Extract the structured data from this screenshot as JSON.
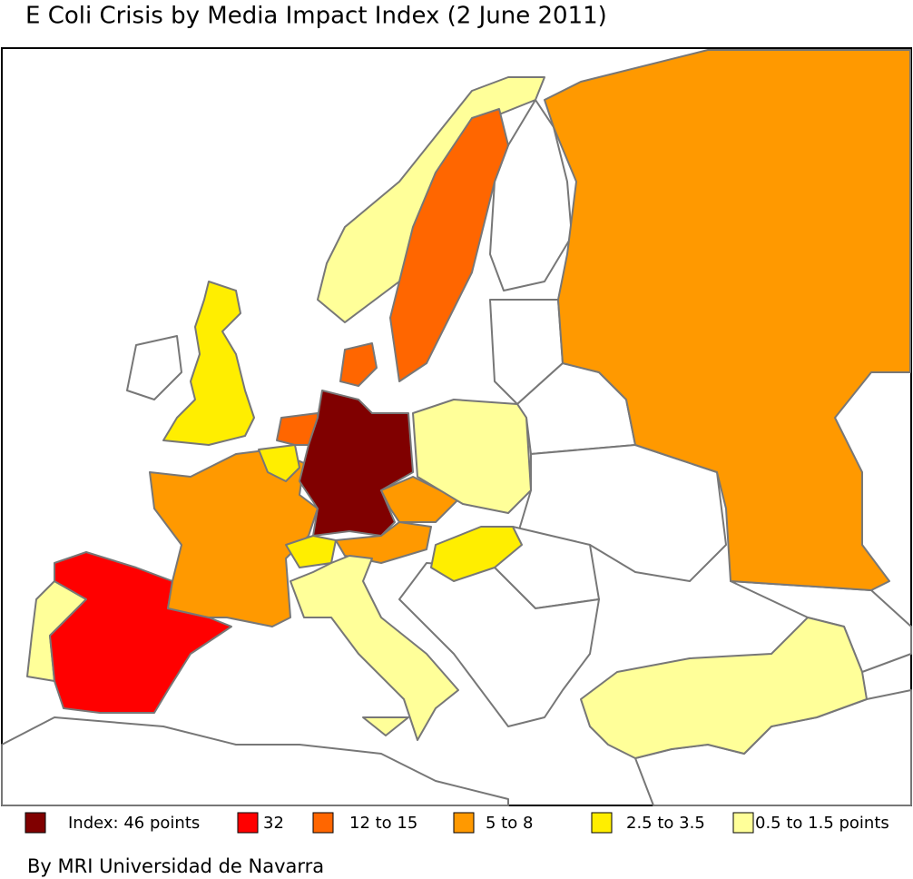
{
  "title": "E Coli Crisis by Media Impact Index (2 June 2011)",
  "legend": {
    "items": [
      {
        "label": "Index: 46 points",
        "color": "#800000"
      },
      {
        "label": "32",
        "color": "#ff0000"
      },
      {
        "label": "12 to 15",
        "color": "#ff6600"
      },
      {
        "label": "5 to 8",
        "color": "#ff9900"
      },
      {
        "label": "2.5 to 3.5",
        "color": "#ffee00"
      },
      {
        "label": "0.5 to 1.5 points",
        "color": "#ffff99"
      }
    ]
  },
  "credit": "By MRI Universidad de Navarra"
}
